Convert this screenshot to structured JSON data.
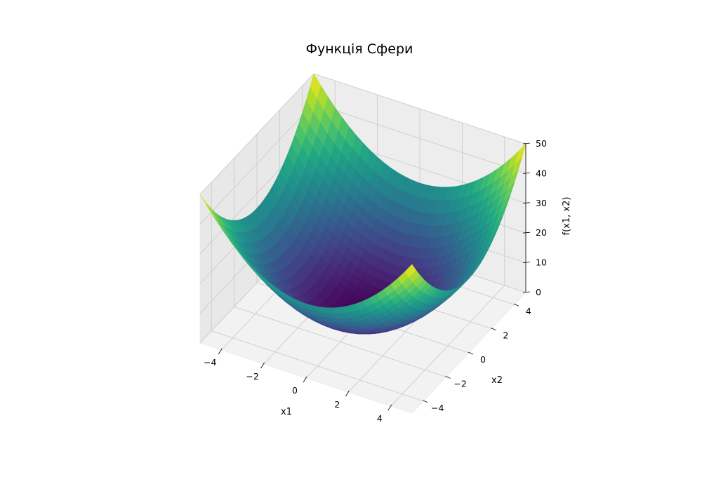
{
  "chart_data": {
    "type": "surface",
    "title": "Функція Сфери",
    "function": "x1^2 + x2^2",
    "xlabel": "x1",
    "ylabel": "x2",
    "zlabel": "f(x1, x2)",
    "xlim": [
      -5,
      5
    ],
    "ylim": [
      -5,
      5
    ],
    "zlim": [
      0,
      50
    ],
    "x_ticks": [
      -4,
      -2,
      0,
      2,
      4
    ],
    "x_tick_labels": [
      "−4",
      "−2",
      "0",
      "2",
      "4"
    ],
    "y_ticks": [
      -4,
      -2,
      0,
      2,
      4
    ],
    "y_tick_labels": [
      "−4",
      "−2",
      "0",
      "2",
      "4"
    ],
    "z_ticks": [
      0,
      10,
      20,
      30,
      40,
      50
    ],
    "z_tick_labels": [
      "0",
      "10",
      "20",
      "30",
      "40",
      "50"
    ],
    "colormap": "viridis",
    "grid": true,
    "legend": "none"
  }
}
